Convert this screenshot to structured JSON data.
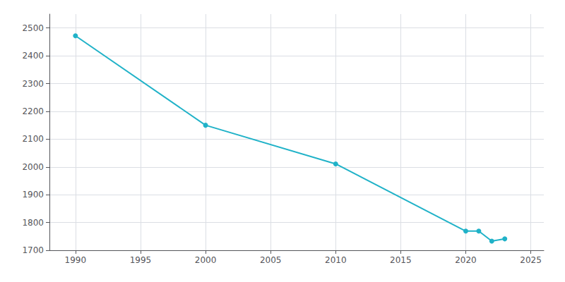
{
  "chart_data": {
    "type": "line",
    "x": [
      1990,
      2000,
      2010,
      2020,
      2021,
      2022,
      2023
    ],
    "values": [
      2472,
      2150,
      2011,
      1769,
      1769,
      1733,
      1741
    ],
    "color": "#20B2C8",
    "marker": "circle",
    "xlim": [
      1988,
      2026
    ],
    "ylim": [
      1700,
      2550
    ],
    "xticks": [
      1990,
      1995,
      2000,
      2005,
      2010,
      2015,
      2020,
      2025
    ],
    "yticks": [
      1700,
      1800,
      1900,
      2000,
      2100,
      2200,
      2300,
      2400,
      2500
    ],
    "grid": true
  }
}
